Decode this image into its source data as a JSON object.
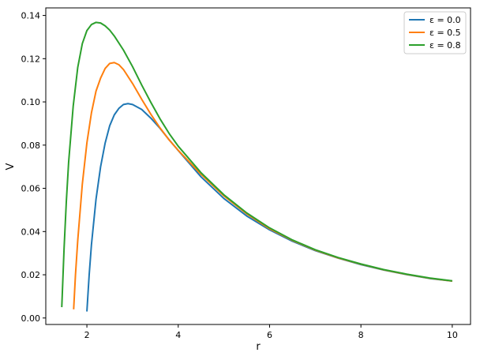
{
  "chart_data": {
    "type": "line",
    "title": "",
    "xlabel": "r",
    "ylabel": "V",
    "xlim": [
      1.1,
      10.4
    ],
    "ylim": [
      -0.003,
      0.1435
    ],
    "xticks": [
      2,
      4,
      6,
      8,
      10
    ],
    "xtick_labels": [
      "2",
      "4",
      "6",
      "8",
      "10"
    ],
    "yticks": [
      0.0,
      0.02,
      0.04,
      0.06,
      0.08,
      0.1,
      0.12,
      0.14
    ],
    "ytick_labels": [
      "0.00",
      "0.02",
      "0.04",
      "0.06",
      "0.08",
      "0.10",
      "0.12",
      "0.14"
    ],
    "grid": false,
    "legend_position": "top-right",
    "series": [
      {
        "name": "ε = 0.0",
        "color": "#1f77b4",
        "x": [
          2.0,
          2.05,
          2.1,
          2.2,
          2.3,
          2.4,
          2.5,
          2.6,
          2.7,
          2.8,
          2.9,
          3.0,
          3.2,
          3.4,
          3.6,
          3.8,
          4.0,
          4.5,
          5.0,
          5.5,
          6.0,
          6.5,
          7.0,
          7.5,
          8.0,
          8.5,
          9.0,
          9.5,
          10.0
        ],
        "y": [
          0.003,
          0.02,
          0.034,
          0.055,
          0.07,
          0.081,
          0.089,
          0.094,
          0.097,
          0.0988,
          0.0992,
          0.0988,
          0.0965,
          0.0925,
          0.0878,
          0.0825,
          0.0775,
          0.0653,
          0.0553,
          0.0472,
          0.0408,
          0.0355,
          0.0312,
          0.0277,
          0.0247,
          0.0222,
          0.0201,
          0.0183,
          0.0171
        ]
      },
      {
        "name": "ε = 0.5",
        "color": "#ff7f0e",
        "x": [
          1.71,
          1.75,
          1.8,
          1.9,
          2.0,
          2.1,
          2.2,
          2.3,
          2.4,
          2.5,
          2.6,
          2.7,
          2.8,
          3.0,
          3.2,
          3.4,
          3.6,
          3.8,
          4.0,
          4.5,
          5.0,
          5.5,
          6.0,
          6.5,
          7.0,
          7.5,
          8.0,
          8.5,
          9.0,
          9.5,
          10.0
        ],
        "y": [
          0.004,
          0.02,
          0.036,
          0.062,
          0.081,
          0.095,
          0.105,
          0.111,
          0.1155,
          0.1178,
          0.1182,
          0.1172,
          0.115,
          0.1085,
          0.1012,
          0.0943,
          0.088,
          0.0824,
          0.0776,
          0.0665,
          0.0565,
          0.0482,
          0.0413,
          0.0359,
          0.0314,
          0.0278,
          0.0249,
          0.0223,
          0.0202,
          0.0184,
          0.0171
        ]
      },
      {
        "name": "ε = 0.8",
        "color": "#2ca02c",
        "x": [
          1.45,
          1.5,
          1.55,
          1.6,
          1.7,
          1.8,
          1.9,
          2.0,
          2.1,
          2.2,
          2.3,
          2.4,
          2.5,
          2.6,
          2.8,
          3.0,
          3.2,
          3.4,
          3.6,
          3.8,
          4.0,
          4.5,
          5.0,
          5.5,
          6.0,
          6.5,
          7.0,
          7.5,
          8.0,
          8.5,
          9.0,
          9.5,
          10.0
        ],
        "y": [
          0.005,
          0.032,
          0.054,
          0.072,
          0.098,
          0.116,
          0.127,
          0.133,
          0.1358,
          0.1368,
          0.1365,
          0.1352,
          0.1332,
          0.1305,
          0.124,
          0.1163,
          0.1078,
          0.0998,
          0.0922,
          0.0854,
          0.0795,
          0.0672,
          0.057,
          0.0486,
          0.0417,
          0.0361,
          0.0316,
          0.028,
          0.025,
          0.0224,
          0.0203,
          0.0185,
          0.0172
        ]
      }
    ]
  }
}
